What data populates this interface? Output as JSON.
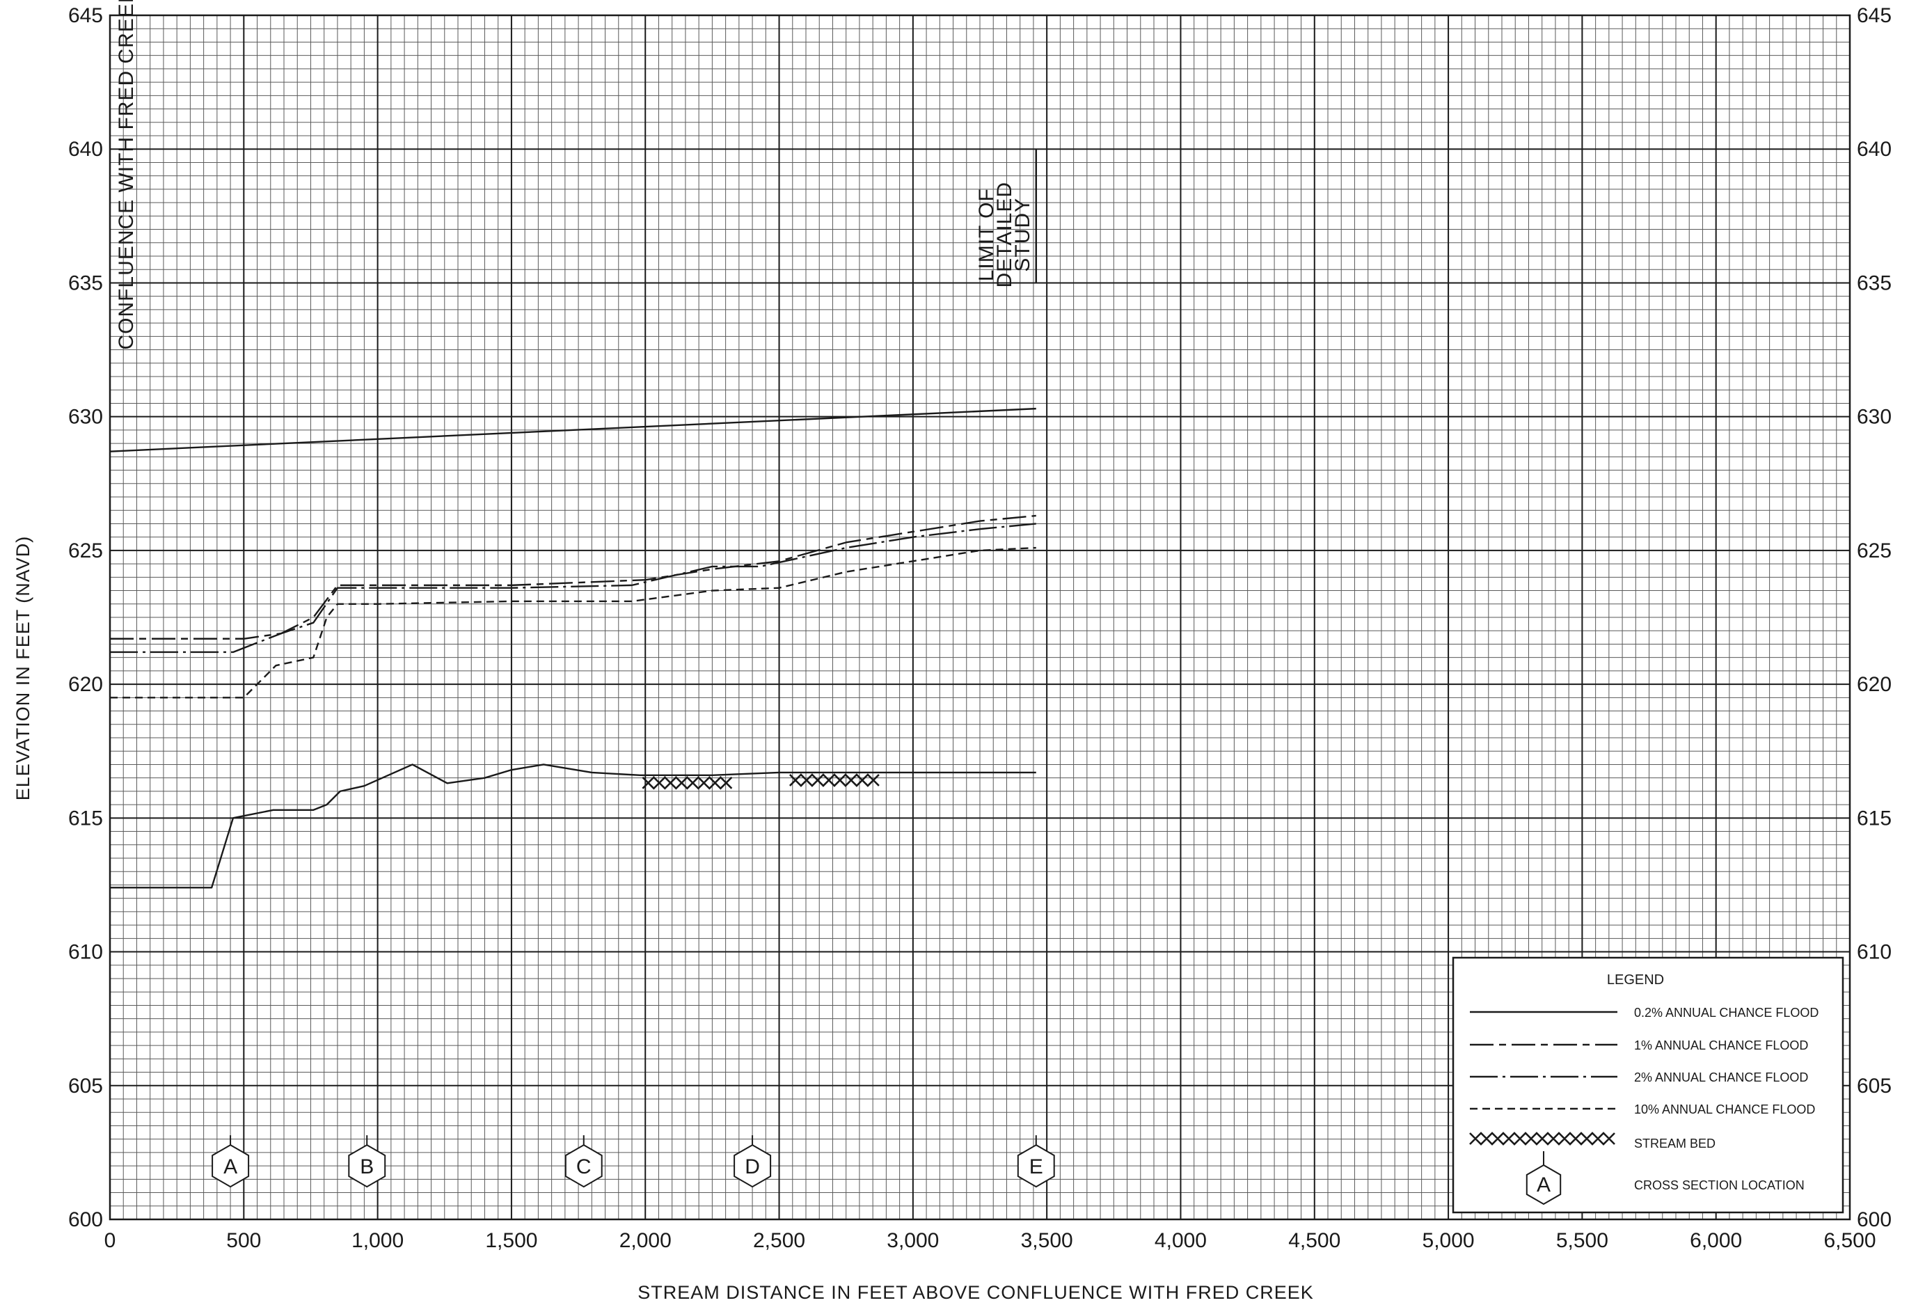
{
  "chart_data": {
    "type": "line",
    "title": "",
    "xlabel": "STREAM DISTANCE IN FEET ABOVE CONFLUENCE WITH FRED CREEK",
    "ylabel": "ELEVATION IN FEET (NAVD)",
    "xlim": [
      0,
      6500
    ],
    "ylim": [
      600,
      645
    ],
    "x_ticks": [
      0,
      500,
      1000,
      1500,
      2000,
      2500,
      3000,
      3500,
      4000,
      4500,
      5000,
      5500,
      6000,
      6500
    ],
    "x_tick_labels": [
      "0",
      "500",
      "1,000",
      "1,500",
      "2,000",
      "2,500",
      "3,000",
      "3,500",
      "4,000",
      "4,500",
      "5,000",
      "5,500",
      "6,000",
      "6,500"
    ],
    "y_ticks": [
      600,
      605,
      610,
      615,
      620,
      625,
      630,
      635,
      640,
      645
    ],
    "y_tick_labels": [
      "600",
      "605",
      "610",
      "615",
      "620",
      "625",
      "630",
      "635",
      "640",
      "645"
    ],
    "grid": true,
    "legend_position": "bottom-right",
    "series": [
      {
        "name": "0.2% ANNUAL CHANCE FLOOD",
        "style": "solid",
        "x": [
          0,
          3460
        ],
        "y": [
          628.7,
          630.3
        ]
      },
      {
        "name": "1% ANNUAL CHANCE FLOOD",
        "style": "long-dash-short-dash",
        "x": [
          0,
          500,
          640,
          760,
          850,
          1000,
          1500,
          2000,
          2250,
          2500,
          2750,
          3000,
          3250,
          3460
        ],
        "y": [
          621.7,
          621.7,
          621.9,
          622.5,
          623.7,
          623.7,
          623.7,
          623.9,
          624.3,
          624.6,
          625.3,
          625.7,
          626.1,
          626.3
        ]
      },
      {
        "name": "2% ANNUAL CHANCE FLOOD",
        "style": "long-dash-dot",
        "x": [
          0,
          460,
          640,
          760,
          850,
          1000,
          1500,
          1950,
          2250,
          2430,
          2750,
          3000,
          3250,
          3460
        ],
        "y": [
          621.2,
          621.2,
          621.9,
          622.3,
          623.6,
          623.6,
          623.6,
          623.7,
          624.4,
          624.4,
          625.1,
          625.5,
          625.8,
          626.0
        ]
      },
      {
        "name": "10% ANNUAL CHANCE FLOOD",
        "style": "short-dash",
        "x": [
          0,
          500,
          620,
          760,
          810,
          850,
          1000,
          1500,
          1950,
          2250,
          2500,
          2750,
          3000,
          3250,
          3460
        ],
        "y": [
          619.5,
          619.5,
          620.7,
          621.0,
          622.5,
          623.0,
          623.0,
          623.1,
          623.1,
          623.5,
          623.6,
          624.2,
          624.6,
          625.0,
          625.1
        ]
      },
      {
        "name": "STREAM BED",
        "style": "solid",
        "x": [
          0,
          380,
          460,
          610,
          760,
          810,
          860,
          950,
          1130,
          1260,
          1400,
          1500,
          1620,
          1800,
          1980,
          2250,
          2500,
          3000,
          3460
        ],
        "y": [
          612.4,
          612.4,
          615.0,
          615.3,
          615.3,
          615.5,
          616.0,
          616.2,
          617.0,
          616.3,
          616.5,
          616.8,
          617.0,
          616.7,
          616.6,
          616.6,
          616.7,
          616.7,
          616.7
        ]
      }
    ],
    "stream_bed_hatch": [
      {
        "x_start": 1990,
        "x_end": 2360,
        "y": 616.6
      },
      {
        "x_start": 2540,
        "x_end": 2910,
        "y": 616.7
      }
    ],
    "cross_sections": [
      {
        "label": "A",
        "x": 450
      },
      {
        "label": "B",
        "x": 960
      },
      {
        "label": "C",
        "x": 1770
      },
      {
        "label": "D",
        "x": 2400
      },
      {
        "label": "E",
        "x": 3460
      }
    ],
    "annotations": [
      {
        "text": "CONFLUENCE WITH FRED CREEK",
        "x": 60,
        "y_range": [
          632.5,
          645
        ]
      },
      {
        "text_lines": [
          "LIMIT OF",
          "DETAILED",
          "STUDY"
        ],
        "x": 3460,
        "y_range": [
          635,
          640
        ]
      }
    ],
    "legend": {
      "title": "LEGEND",
      "entries": [
        {
          "label": "0.2% ANNUAL CHANCE FLOOD",
          "style": "solid"
        },
        {
          "label": "1% ANNUAL CHANCE FLOOD",
          "style": "long-dash-short-dash"
        },
        {
          "label": "2% ANNUAL CHANCE FLOOD",
          "style": "long-dash-dot"
        },
        {
          "label": "10% ANNUAL CHANCE FLOOD",
          "style": "short-dash"
        },
        {
          "label": "STREAM BED",
          "style": "hatch"
        },
        {
          "label": "CROSS SECTION LOCATION",
          "style": "hexagon",
          "symbol_label": "A"
        }
      ]
    },
    "colors": {
      "ink": "#1a1a1a",
      "grid_minor": "#5a5a5a",
      "background": "#ffffff"
    }
  }
}
